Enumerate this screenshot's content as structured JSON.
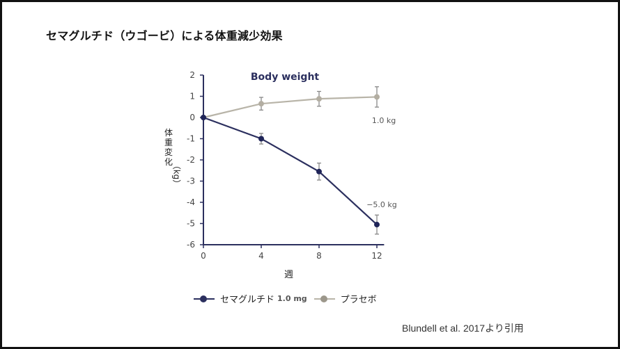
{
  "page": {
    "title": "セマグルチド（ウゴービ）による体重減少効果",
    "citation": "Blundell et al. 2017より引用"
  },
  "chart_data": {
    "type": "line",
    "title": "Body weight",
    "xlabel": "週",
    "ylabel": "体重変化（kg）",
    "x": [
      0,
      4,
      8,
      12
    ],
    "xticks": [
      "0",
      "4",
      "8",
      "12"
    ],
    "yticks": [
      "2",
      "1",
      "0",
      "-1",
      "-2",
      "-3",
      "-4",
      "-5",
      "-6"
    ],
    "ylim": [
      -6,
      2
    ],
    "xlim": [
      0,
      12.5
    ],
    "grid": false,
    "legend_position": "bottom",
    "series": [
      {
        "name": "セマグルチド",
        "legend_suffix": "1.0 mg",
        "color": "#2b2f5e",
        "values": [
          0,
          -1.0,
          -2.55,
          -5.05
        ],
        "error": [
          0,
          0.25,
          0.4,
          0.45
        ],
        "end_label": "−5.0 kg"
      },
      {
        "name": "プラセボ",
        "legend_suffix": "",
        "color": "#b8b4a8",
        "values": [
          0,
          0.65,
          0.88,
          0.97
        ],
        "error": [
          0,
          0.3,
          0.35,
          0.48
        ],
        "end_label": "1.0 kg"
      }
    ]
  },
  "legend": {
    "item1_name": "セマグルチド",
    "item1_suffix": "1.0 mg",
    "item2_name": "プラセボ"
  },
  "axis_labels": {
    "y_text": "体重変化",
    "y_unit": "（kg）",
    "x_text": "週"
  }
}
